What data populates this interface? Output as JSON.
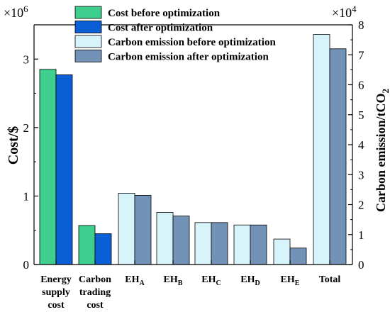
{
  "chart_data": {
    "type": "bar",
    "categories": [
      {
        "main": "Energy",
        "sub": "",
        "lines": [
          "Energy",
          "supply",
          "cost"
        ]
      },
      {
        "main": "Carbon",
        "sub": "",
        "lines": [
          "Carbon",
          "trading",
          "cost"
        ]
      },
      {
        "main": "EH",
        "sub": "A",
        "lines": []
      },
      {
        "main": "EH",
        "sub": "B",
        "lines": []
      },
      {
        "main": "EH",
        "sub": "C",
        "lines": []
      },
      {
        "main": "EH",
        "sub": "D",
        "lines": []
      },
      {
        "main": "EH",
        "sub": "E",
        "lines": []
      },
      {
        "main": "Total",
        "sub": "",
        "lines": [
          "Total"
        ]
      }
    ],
    "series": [
      {
        "name": "Cost before optimization",
        "axis": "left",
        "color": "#3ecf8e",
        "values": [
          2.85,
          0.57,
          null,
          null,
          null,
          null,
          null,
          null
        ]
      },
      {
        "name": "Cost after optimization",
        "axis": "left",
        "color": "#0a5fd6",
        "values": [
          2.77,
          0.45,
          null,
          null,
          null,
          null,
          null,
          null
        ]
      },
      {
        "name": "Carbon emission before optimization",
        "axis": "right",
        "color": "#d8f4fb",
        "values": [
          null,
          null,
          2.38,
          1.74,
          1.4,
          1.32,
          0.85,
          7.68
        ]
      },
      {
        "name": "Carbon emission after optimization",
        "axis": "right",
        "color": "#7392b8",
        "values": [
          null,
          null,
          2.31,
          1.62,
          1.4,
          1.32,
          0.55,
          7.2
        ]
      }
    ],
    "left_axis": {
      "label": "Cost/$",
      "multiplier": "×10",
      "multiplier_exp": "6",
      "range": [
        0,
        3.5
      ],
      "ticks": [
        0,
        1,
        2,
        3
      ]
    },
    "right_axis": {
      "label": "Carbon emission/tCO",
      "label_sub": "2",
      "multiplier": "×10",
      "multiplier_exp": "4",
      "range": [
        0,
        8
      ],
      "ticks": [
        0,
        1,
        2,
        3,
        4,
        5,
        6,
        7,
        8
      ]
    },
    "legend_position": "top-center",
    "grid": false
  }
}
